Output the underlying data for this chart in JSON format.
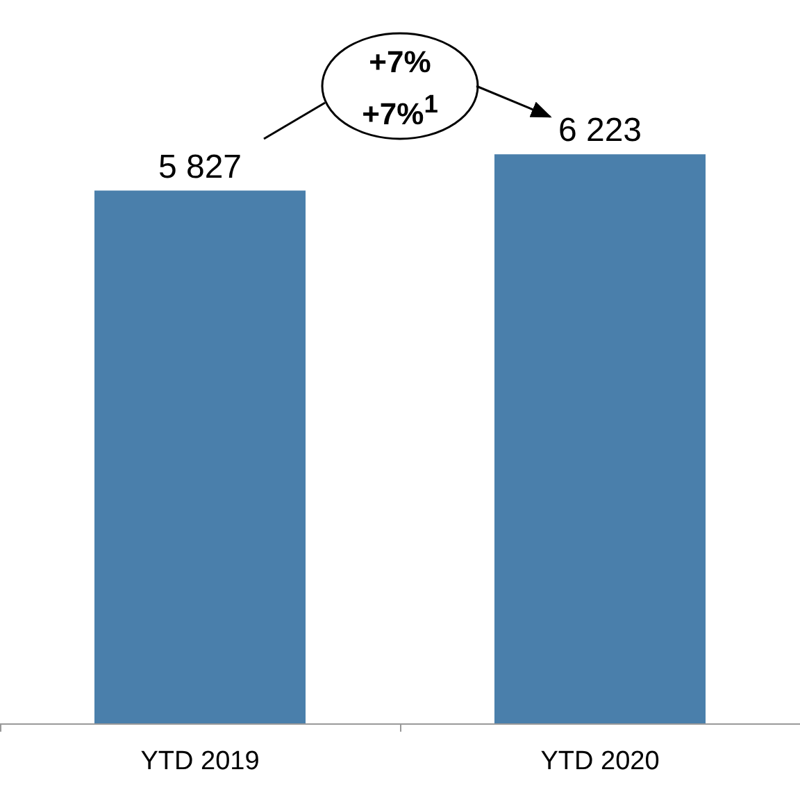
{
  "chart_data": {
    "type": "bar",
    "categories": [
      "YTD 2019",
      "YTD 2020"
    ],
    "series": [
      {
        "color": "#4a7fab",
        "values": [
          5827,
          6223
        ],
        "value_labels": [
          "5 827",
          "6 223"
        ]
      }
    ],
    "annotations": [
      "+7%",
      "+7%$^{1}$"
    ]
  }
}
